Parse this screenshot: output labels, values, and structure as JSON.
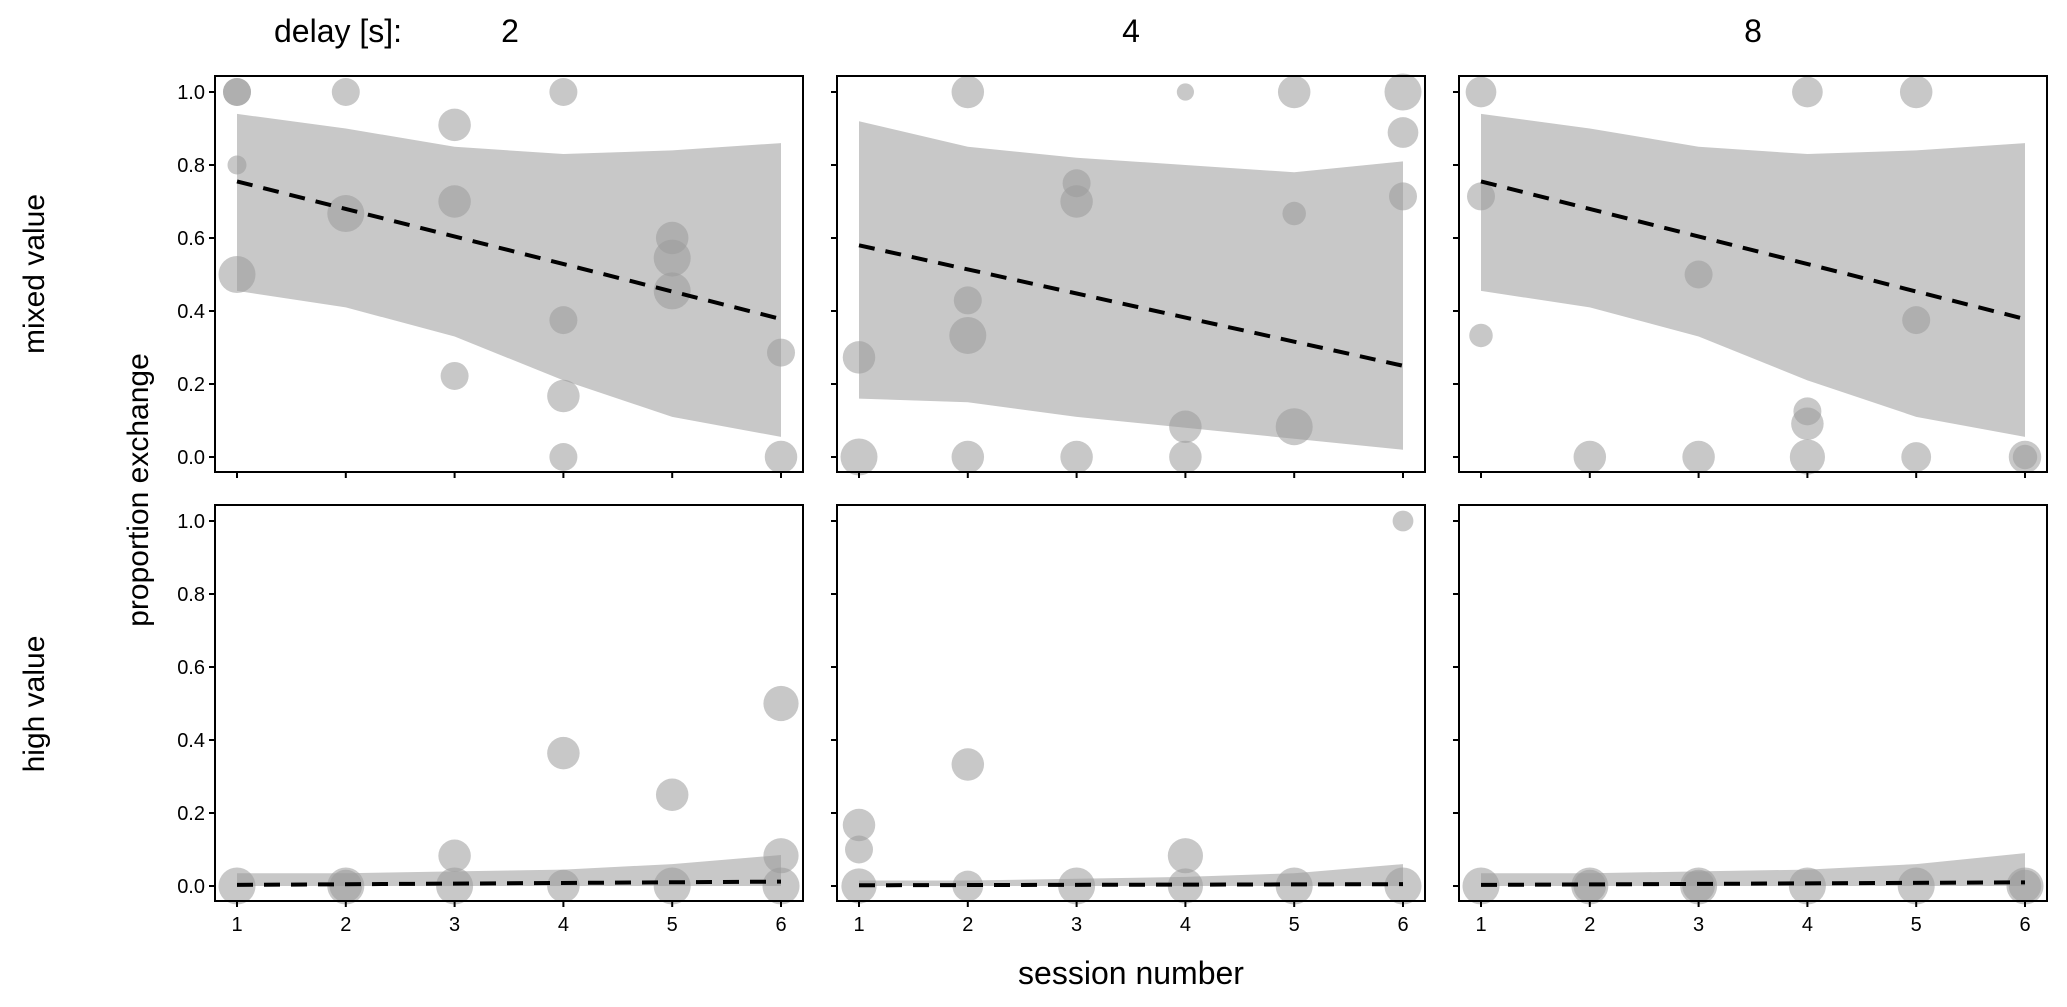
{
  "chart_data": {
    "type": "scatter",
    "facet_label": "delay [s]:",
    "columns": [
      "2",
      "4",
      "8"
    ],
    "rows": [
      "mixed value",
      "high value"
    ],
    "xlabel": "session number",
    "ylabel": "proportion exchange",
    "xticks": [
      "1",
      "2",
      "3",
      "4",
      "5",
      "6"
    ],
    "yticks": [
      "0.0",
      "0.2",
      "0.4",
      "0.6",
      "0.8",
      "1.0"
    ],
    "xlim": [
      1,
      6
    ],
    "ylim": [
      0,
      1
    ],
    "colors": {
      "point": "#9a9a9a",
      "ribbon": "#c8c8c8",
      "line": "#000000"
    },
    "panels": [
      {
        "row": 0,
        "col": 0,
        "points": [
          [
            1,
            1.0,
            2
          ],
          [
            1,
            1.0,
            2
          ],
          [
            1,
            0.8,
            1
          ],
          [
            1,
            0.5,
            3
          ],
          [
            2,
            1.0,
            2
          ],
          [
            2,
            0.667,
            3
          ],
          [
            3,
            0.91,
            2.5
          ],
          [
            3,
            0.7,
            2.5
          ],
          [
            3,
            0.222,
            2
          ],
          [
            4,
            1.0,
            2
          ],
          [
            4,
            0.375,
            2
          ],
          [
            4,
            0.167,
            2.5
          ],
          [
            4,
            0.0,
            2
          ],
          [
            5,
            0.6,
            2.5
          ],
          [
            5,
            0.545,
            3
          ],
          [
            5,
            0.455,
            3
          ],
          [
            6,
            0.286,
            2
          ],
          [
            6,
            0.0,
            2.5
          ]
        ],
        "fit": [
          0.755,
          0.378
        ],
        "ribbon_upper": [
          0.94,
          0.9,
          0.85,
          0.83,
          0.84,
          0.86
        ],
        "ribbon_lower": [
          0.455,
          0.41,
          0.33,
          0.21,
          0.11,
          0.055
        ]
      },
      {
        "row": 0,
        "col": 1,
        "points": [
          [
            1,
            0.273,
            2.5
          ],
          [
            1,
            0.0,
            3
          ],
          [
            2,
            1.0,
            2.5
          ],
          [
            2,
            0.429,
            2
          ],
          [
            2,
            0.333,
            3
          ],
          [
            2,
            0.0,
            2.5
          ],
          [
            3,
            0.75,
            2
          ],
          [
            3,
            0.7,
            2.5
          ],
          [
            3,
            0.0,
            2.5
          ],
          [
            4,
            1.0,
            0.8
          ],
          [
            4,
            0.083,
            2.5
          ],
          [
            4,
            0.0,
            2.5
          ],
          [
            5,
            1.0,
            2.5
          ],
          [
            5,
            0.667,
            1.5
          ],
          [
            5,
            0.083,
            3
          ],
          [
            6,
            1.0,
            3
          ],
          [
            6,
            0.889,
            2.3
          ],
          [
            6,
            0.714,
            2
          ]
        ],
        "fit": [
          0.58,
          0.25
        ],
        "ribbon_upper": [
          0.92,
          0.85,
          0.82,
          0.8,
          0.78,
          0.81
        ],
        "ribbon_lower": [
          0.16,
          0.15,
          0.11,
          0.08,
          0.05,
          0.02
        ]
      },
      {
        "row": 0,
        "col": 2,
        "points": [
          [
            1,
            1.0,
            2.3
          ],
          [
            1,
            0.714,
            2
          ],
          [
            1,
            0.333,
            1.5
          ],
          [
            2,
            0.0,
            2.5
          ],
          [
            3,
            0.5,
            2
          ],
          [
            3,
            0.0,
            2.5
          ],
          [
            4,
            1.0,
            2.3
          ],
          [
            4,
            0.125,
            2
          ],
          [
            4,
            0.091,
            2.5
          ],
          [
            4,
            0.0,
            2.8
          ],
          [
            5,
            1.0,
            2.5
          ],
          [
            5,
            0.375,
            2
          ],
          [
            5,
            0.0,
            2.2
          ],
          [
            6,
            0.0,
            2.5
          ],
          [
            6,
            0.0,
            1.6
          ]
        ],
        "fit": [
          0.755,
          0.378
        ],
        "ribbon_upper": [
          0.94,
          0.9,
          0.85,
          0.83,
          0.84,
          0.86
        ],
        "ribbon_lower": [
          0.455,
          0.41,
          0.33,
          0.21,
          0.11,
          0.055
        ]
      },
      {
        "row": 1,
        "col": 0,
        "points": [
          [
            1,
            0.0,
            3
          ],
          [
            2,
            0.0,
            3
          ],
          [
            2,
            0.0,
            2.5
          ],
          [
            3,
            0.083,
            2.5
          ],
          [
            3,
            0.0,
            3
          ],
          [
            4,
            0.364,
            2.5
          ],
          [
            4,
            0.0,
            2.5
          ],
          [
            5,
            0.25,
            2.5
          ],
          [
            5,
            0.0,
            3
          ],
          [
            6,
            0.5,
            2.8
          ],
          [
            6,
            0.083,
            2.8
          ],
          [
            6,
            0.0,
            3
          ]
        ],
        "fit": [
          0.003,
          0.012
        ],
        "ribbon_upper": [
          0.035,
          0.035,
          0.04,
          0.045,
          0.06,
          0.085
        ],
        "ribbon_lower": [
          0,
          0,
          0,
          0,
          0,
          0
        ]
      },
      {
        "row": 1,
        "col": 1,
        "points": [
          [
            1,
            0.167,
            2.5
          ],
          [
            1,
            0.1,
            2
          ],
          [
            1,
            0.0,
            2.8
          ],
          [
            2,
            0.333,
            2.5
          ],
          [
            2,
            0.0,
            2.3
          ],
          [
            3,
            0.0,
            3
          ],
          [
            4,
            0.083,
            2.8
          ],
          [
            4,
            0.0,
            2.8
          ],
          [
            5,
            0.0,
            3
          ],
          [
            6,
            1.0,
            1.2
          ],
          [
            6,
            0.0,
            3
          ]
        ],
        "fit": [
          0.002,
          0.005
        ],
        "ribbon_upper": [
          0.015,
          0.015,
          0.02,
          0.025,
          0.035,
          0.06
        ],
        "ribbon_lower": [
          0,
          0,
          0,
          0,
          0,
          0
        ]
      },
      {
        "row": 1,
        "col": 2,
        "points": [
          [
            1,
            0.0,
            3
          ],
          [
            2,
            0.0,
            3
          ],
          [
            2,
            0.0,
            2.5
          ],
          [
            3,
            0.0,
            3
          ],
          [
            3,
            0.0,
            2.5
          ],
          [
            4,
            0.0,
            3
          ],
          [
            5,
            0.0,
            3
          ],
          [
            6,
            0.0,
            3
          ],
          [
            6,
            0.0,
            2.5
          ]
        ],
        "fit": [
          0.003,
          0.01
        ],
        "ribbon_upper": [
          0.035,
          0.035,
          0.04,
          0.045,
          0.06,
          0.09
        ],
        "ribbon_lower": [
          0,
          0,
          0,
          0,
          0,
          0
        ]
      }
    ]
  }
}
